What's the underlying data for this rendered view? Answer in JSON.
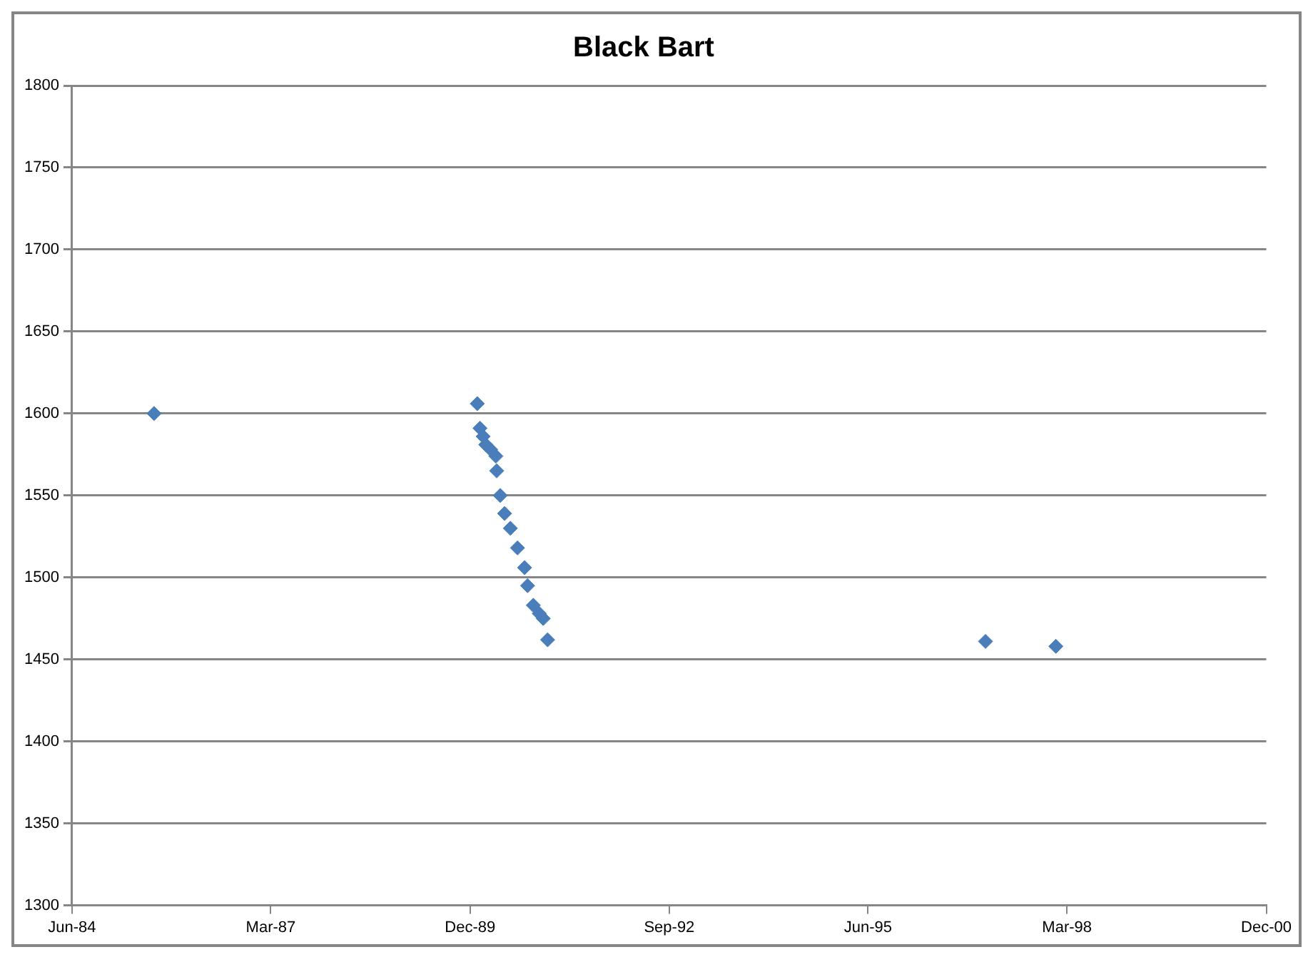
{
  "chart_data": {
    "type": "scatter",
    "title": "Black Bart",
    "x": [
      "1985-07-20",
      "1990-01-06",
      "1990-01-20",
      "1990-02-05",
      "1990-02-18",
      "1990-03-15",
      "1990-04-10",
      "1990-04-14",
      "1990-05-02",
      "1990-05-24",
      "1990-06-22",
      "1990-07-28",
      "1990-09-02",
      "1990-09-17",
      "1990-10-16",
      "1990-11-15",
      "1990-12-05",
      "1990-12-27",
      "1997-01-14",
      "1998-01-04"
    ],
    "series": [
      {
        "color": "#4a7ebb",
        "values": [
          1600,
          1606,
          1591,
          1586,
          1581,
          1578,
          1574,
          1565,
          1550,
          1539,
          1530,
          1518,
          1506,
          1495,
          1483,
          1478,
          1475,
          1462,
          1461,
          1458
        ]
      }
    ],
    "xlim": [
      "1984-06-01",
      "2000-12-01"
    ],
    "xticks": [
      {
        "value": "1984-06-01",
        "label": "Jun-84"
      },
      {
        "value": "1987-03-01",
        "label": "Mar-87"
      },
      {
        "value": "1989-12-01",
        "label": "Dec-89"
      },
      {
        "value": "1992-09-01",
        "label": "Sep-92"
      },
      {
        "value": "1995-06-01",
        "label": "Jun-95"
      },
      {
        "value": "1998-03-01",
        "label": "Mar-98"
      },
      {
        "value": "2000-12-01",
        "label": "Dec-00"
      }
    ],
    "ylim": [
      1300,
      1800
    ],
    "yticks": [
      1300,
      1350,
      1400,
      1450,
      1500,
      1550,
      1600,
      1650,
      1700,
      1750,
      1800
    ],
    "grid": "y",
    "marker": "diamond",
    "legend": false
  }
}
